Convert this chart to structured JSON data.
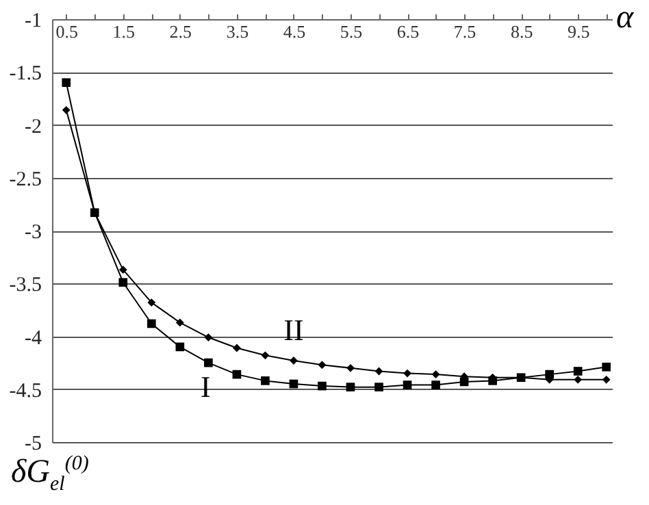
{
  "chart_data": {
    "type": "line",
    "xlabel": "α",
    "ylabel": "δG$_{el}$$^{(0)}$",
    "xlim": [
      0.25,
      10.1
    ],
    "ylim": [
      -5,
      -1
    ],
    "xticks": [
      0.5,
      {
        "value": 1,
        "label": null
      },
      1.5,
      {
        "value": 2,
        "label": null
      },
      2.5,
      {
        "value": 3,
        "label": null
      },
      3.5,
      {
        "value": 4,
        "label": null
      },
      4.5,
      {
        "value": 5,
        "label": null
      },
      5.5,
      {
        "value": 6,
        "label": null
      },
      6.5,
      {
        "value": 7,
        "label": null
      },
      7.5,
      {
        "value": 8,
        "label": null
      },
      8.5,
      {
        "value": 9,
        "label": null
      },
      9.5,
      {
        "value": 10,
        "label": null
      }
    ],
    "yticks": [
      -5,
      -4.5,
      -4,
      -3.5,
      -3,
      -2.5,
      -2,
      -1.5,
      -1
    ],
    "grid": "y",
    "line_style": "solid",
    "x": [
      0.5,
      1,
      1.5,
      2,
      2.5,
      3,
      3.5,
      4,
      4.5,
      5,
      5.5,
      6,
      6.5,
      7,
      7.5,
      8,
      8.5,
      9,
      9.5,
      10
    ],
    "series": [
      {
        "name": "I",
        "color": "#000000",
        "marker": "square",
        "values": [
          -1.6,
          -2.83,
          -3.49,
          -3.88,
          -4.1,
          -4.25,
          -4.36,
          -4.42,
          -4.45,
          -4.47,
          -4.48,
          -4.48,
          -4.46,
          -4.46,
          -4.43,
          -4.42,
          -4.39,
          -4.36,
          -4.33,
          -4.29
        ]
      },
      {
        "name": "II",
        "color": "#000000",
        "marker": "diamond",
        "values": [
          -1.86,
          -2.83,
          -3.37,
          -3.68,
          -3.87,
          -4.01,
          -4.11,
          -4.18,
          -4.23,
          -4.27,
          -4.3,
          -4.33,
          -4.35,
          -4.36,
          -4.38,
          -4.39,
          -4.39,
          -4.41,
          -4.41,
          -4.41
        ]
      }
    ]
  }
}
